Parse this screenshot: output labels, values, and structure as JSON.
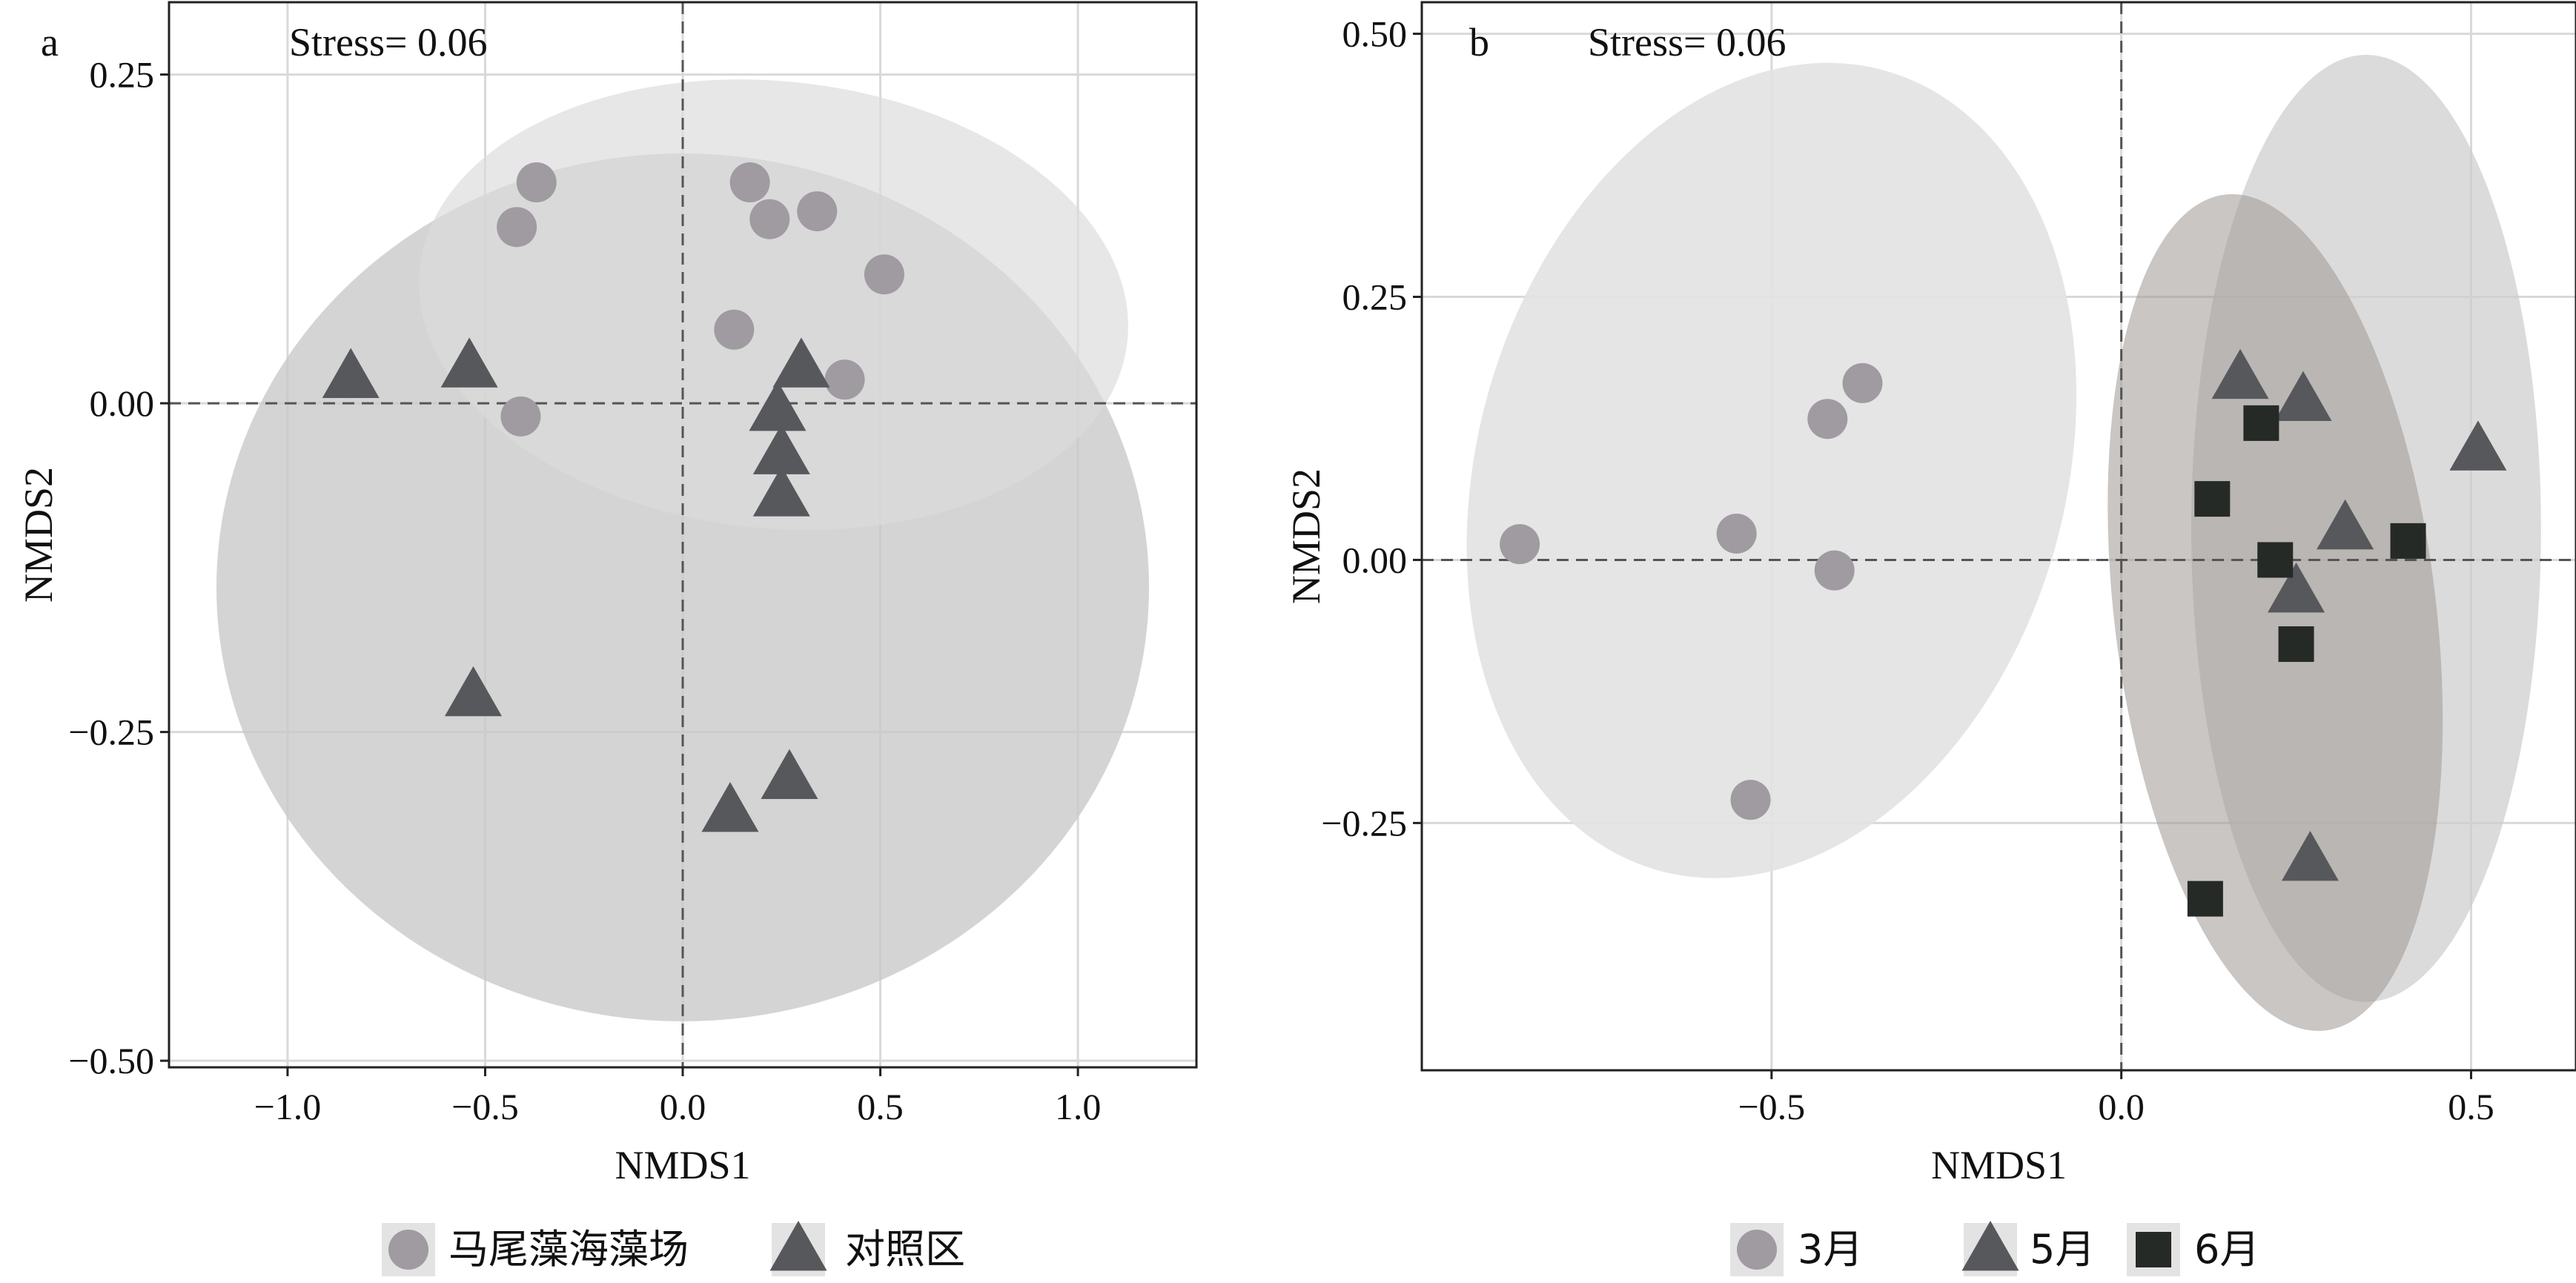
{
  "chart_data": [
    {
      "panel_label": "a",
      "type": "scatter",
      "stress_label": "Stress= 0.06",
      "xlabel": "NMDS1",
      "ylabel": "NMDS2",
      "xlim": [
        -1.3,
        1.3
      ],
      "ylim": [
        -0.505,
        0.305
      ],
      "xticks": [
        -1.0,
        -0.5,
        0.0,
        0.5,
        1.0
      ],
      "xtick_labels": [
        "−1.0",
        "−0.5",
        "0.0",
        "0.5",
        "1.0"
      ],
      "yticks": [
        0.25,
        0.0,
        -0.25,
        -0.5
      ],
      "ytick_labels": [
        "0.25",
        "0.00",
        "−0.25",
        "−0.50"
      ],
      "grid": true,
      "zero_lines": "dashed",
      "ellipses": [
        {
          "group": "对照区",
          "cx": 0.0,
          "cy": -0.14,
          "rx": 1.18,
          "ry": 0.33,
          "color": "#c8c8c8",
          "opacity": 0.78
        },
        {
          "group": "马尾藻海藻场",
          "cx": 0.23,
          "cy": 0.075,
          "rx": 0.9,
          "ry": 0.17,
          "angle": -0.1,
          "color": "#dcdcdc",
          "opacity": 0.68
        }
      ],
      "series": [
        {
          "name": "马尾藻海藻场",
          "marker": "circle",
          "color": "#9f9ba1",
          "points": [
            [
              -0.37,
              0.168
            ],
            [
              -0.42,
              0.134
            ],
            [
              -0.41,
              -0.01
            ],
            [
              0.17,
              0.168
            ],
            [
              0.22,
              0.14
            ],
            [
              0.34,
              0.146
            ],
            [
              0.51,
              0.098
            ],
            [
              0.13,
              0.056
            ],
            [
              0.41,
              0.018
            ]
          ]
        },
        {
          "name": "对照区",
          "marker": "triangle",
          "color": "#56585c",
          "points": [
            [
              -0.84,
              0.02
            ],
            [
              -0.54,
              0.028
            ],
            [
              0.3,
              0.028
            ],
            [
              0.24,
              -0.005
            ],
            [
              0.25,
              -0.038
            ],
            [
              0.25,
              -0.07
            ],
            [
              -0.53,
              -0.222
            ],
            [
              0.27,
              -0.285
            ],
            [
              0.12,
              -0.31
            ]
          ]
        }
      ],
      "legend": [
        {
          "label": "马尾藻海藻场",
          "marker": "circle",
          "color": "#9f9ba1"
        },
        {
          "label": "对照区",
          "marker": "triangle",
          "color": "#56585c"
        }
      ]
    },
    {
      "panel_label": "b",
      "type": "scatter",
      "stress_label": "Stress= 0.06",
      "xlabel": "NMDS1",
      "ylabel": "NMDS2",
      "xlim": [
        -1.0,
        0.65
      ],
      "ylim": [
        -0.485,
        0.53
      ],
      "xticks": [
        -0.5,
        0.0,
        0.5
      ],
      "xtick_labels": [
        "−0.5",
        "0.0",
        "0.5"
      ],
      "yticks": [
        0.5,
        0.25,
        0.0,
        -0.25
      ],
      "ytick_labels": [
        "0.50",
        "0.25",
        "0.00",
        "−0.25"
      ],
      "grid": true,
      "zero_lines": "dashed",
      "ellipses": [
        {
          "group": "3月",
          "cx": -0.5,
          "cy": 0.085,
          "rx": 0.42,
          "ry": 0.395,
          "angle": -0.28,
          "color": "#e2e2e2",
          "opacity": 0.9
        },
        {
          "group": "5月",
          "cx": 0.35,
          "cy": 0.03,
          "rx": 0.25,
          "ry": 0.45,
          "color": "#cdcdcd",
          "opacity": 0.72
        },
        {
          "group": "6月",
          "cx": 0.22,
          "cy": -0.05,
          "rx": 0.23,
          "ry": 0.4,
          "angle": 0.12,
          "color": "#9c9892",
          "opacity": 0.55
        }
      ],
      "series": [
        {
          "name": "3月",
          "marker": "circle",
          "color": "#9f9ba1",
          "points": [
            [
              -0.86,
              0.015
            ],
            [
              -0.55,
              0.025
            ],
            [
              -0.37,
              0.168
            ],
            [
              -0.42,
              0.134
            ],
            [
              -0.41,
              -0.01
            ],
            [
              -0.53,
              -0.228
            ]
          ]
        },
        {
          "name": "5月",
          "marker": "triangle",
          "color": "#56585c",
          "points": [
            [
              0.17,
              0.173
            ],
            [
              0.26,
              0.152
            ],
            [
              0.51,
              0.105
            ],
            [
              0.32,
              0.03
            ],
            [
              0.25,
              -0.03
            ],
            [
              0.27,
              -0.285
            ]
          ]
        },
        {
          "name": "6月",
          "marker": "square",
          "color": "#262a27",
          "points": [
            [
              0.2,
              0.13
            ],
            [
              0.13,
              0.058
            ],
            [
              0.41,
              0.018
            ],
            [
              0.22,
              0.0
            ],
            [
              0.25,
              -0.08
            ],
            [
              0.12,
              -0.322
            ]
          ]
        }
      ],
      "legend": [
        {
          "label": "3月",
          "marker": "circle",
          "color": "#9f9ba1"
        },
        {
          "label": "5月",
          "marker": "triangle",
          "color": "#56585c"
        },
        {
          "label": "6月",
          "marker": "square",
          "color": "#262a27"
        }
      ]
    }
  ]
}
